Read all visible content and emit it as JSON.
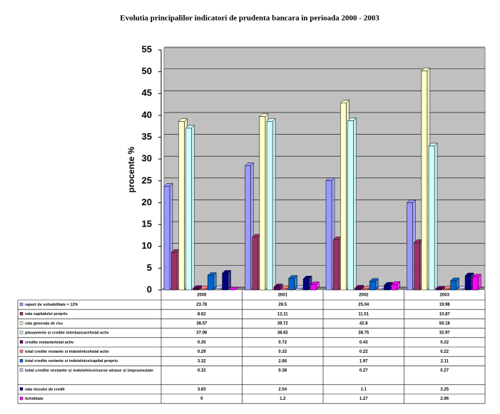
{
  "chart_data": {
    "type": "bar",
    "title": "Evolutia principalilor indicatori de prudenta bancara in perioada 2000 - 2003",
    "y_label": "procente %",
    "categories": [
      "2000",
      "2001",
      "2002",
      "2003"
    ],
    "ylim": [
      0,
      55
    ],
    "yticks": [
      0,
      5,
      10,
      15,
      20,
      25,
      30,
      35,
      40,
      45,
      50,
      55
    ],
    "grid": true,
    "series": [
      {
        "name": "raport de solvabilitate > 12%",
        "color": "#9999ff",
        "values": [
          23.78,
          28.5,
          25.04,
          19.98
        ]
      },
      {
        "name": "rata capitalului propriu",
        "color": "#993366",
        "values": [
          8.62,
          12.11,
          11.51,
          10.87
        ]
      },
      {
        "name": "rata generala de risc",
        "color": "#ffffcc",
        "values": [
          38.57,
          39.72,
          42.8,
          50.18
        ]
      },
      {
        "name": "plasamente si credite interbancare/total activ",
        "color": "#ccffff",
        "values": [
          37.06,
          38.62,
          38.75,
          32.97
        ]
      },
      {
        "name": "credite restante/total activ",
        "color": "#660066",
        "values": [
          0.35,
          0.72,
          0.43,
          0.22
        ]
      },
      {
        "name": "total credite restante si indoielnice/total activ",
        "color": "#ff8080",
        "values": [
          0.29,
          0.32,
          0.22,
          0.22
        ]
      },
      {
        "name": "total credite restante si indoielnice/capital propriu",
        "color": "#0066cc",
        "values": [
          3.32,
          2.66,
          1.97,
          2.11
        ]
      },
      {
        "name": "total credite restante si indoielnice/surse atrase si imprumutate",
        "color": "#ccccff",
        "values": [
          0.32,
          0.38,
          0.27,
          0.27
        ]
      },
      {
        "name": "rata riscului de credit",
        "color": "#000080",
        "values": [
          3.83,
          2.54,
          1.1,
          3.25
        ]
      },
      {
        "name": "lichiditate",
        "color": "#ff00ff",
        "values": [
          0,
          1.2,
          1.27,
          2.96
        ]
      }
    ]
  }
}
